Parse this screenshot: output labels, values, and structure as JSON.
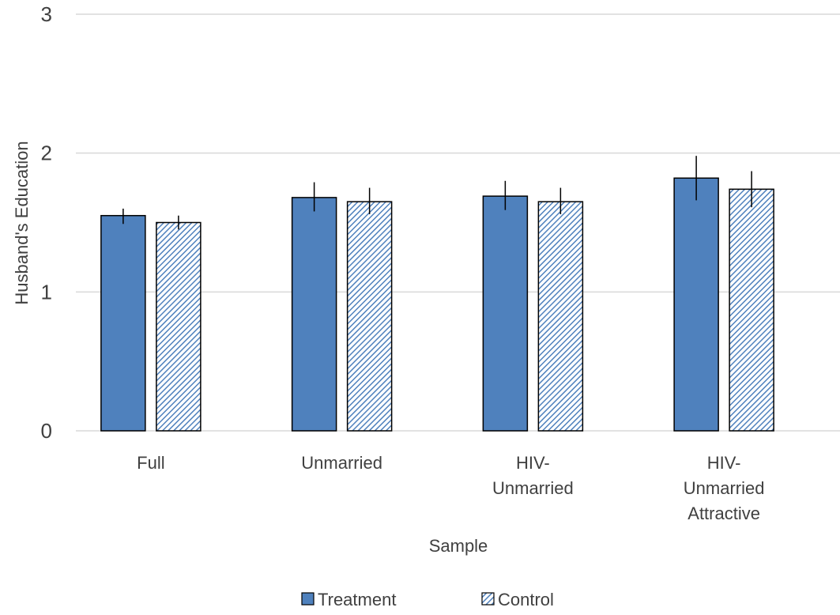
{
  "chart_data": {
    "type": "bar",
    "categories": [
      [
        "Full"
      ],
      [
        "Unmarried"
      ],
      [
        "HIV-",
        "Unmarried"
      ],
      [
        "HIV-",
        "Unmarried",
        "Attractive"
      ]
    ],
    "series": [
      {
        "name": "Treatment",
        "values": [
          1.55,
          1.68,
          1.69,
          1.82
        ],
        "error_low": [
          1.49,
          1.58,
          1.59,
          1.66
        ],
        "error_high": [
          1.6,
          1.79,
          1.8,
          1.98
        ],
        "fill": "#4f81bd",
        "pattern": "solid"
      },
      {
        "name": "Control",
        "values": [
          1.5,
          1.65,
          1.65,
          1.74
        ],
        "error_low": [
          1.45,
          1.56,
          1.56,
          1.61
        ],
        "error_high": [
          1.55,
          1.75,
          1.75,
          1.87
        ],
        "fill": "#4f81bd",
        "pattern": "diagonal-hatch"
      }
    ],
    "xlabel": "Sample",
    "ylabel": "Husband's Education",
    "ylim": [
      0,
      3
    ],
    "yticks": [
      0,
      1,
      2,
      3
    ],
    "grid": true,
    "legend_position": "bottom",
    "colors": {
      "bar_fill": "#4f81bd",
      "bar_edge": "#000000",
      "grid": "#d9d9d9",
      "text": "#404040",
      "error_bar": "#000000"
    }
  }
}
